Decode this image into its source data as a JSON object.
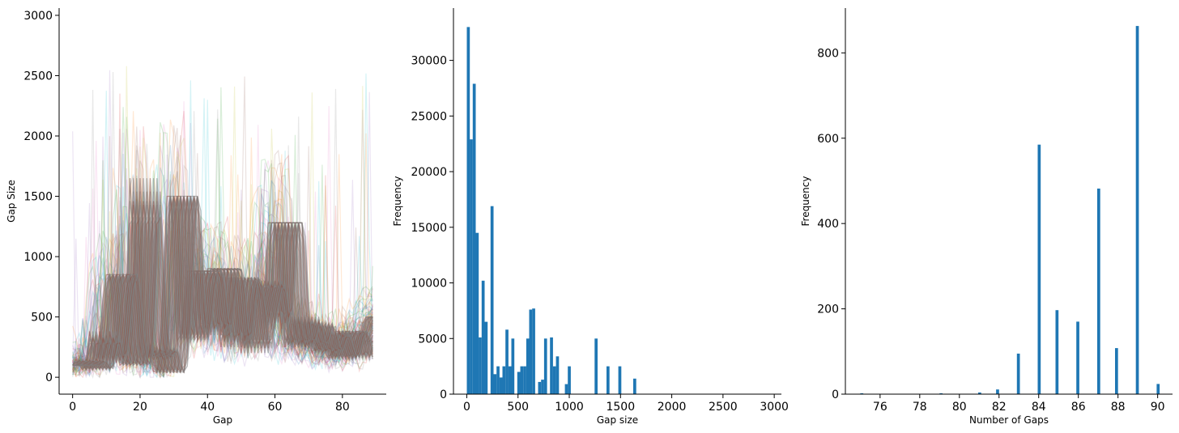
{
  "chart_data": [
    {
      "type": "line",
      "xlabel": "Gap",
      "ylabel": "Gap Size",
      "xlim": [
        -4,
        93
      ],
      "ylim": [
        -140,
        3060
      ],
      "xticks": [
        "0",
        "20",
        "40",
        "60",
        "80"
      ],
      "yticks": [
        "0",
        "500",
        "1000",
        "1500",
        "2000",
        "2500",
        "3000"
      ],
      "grid": false,
      "note_series": "many overlapping sequences of gap sizes (gap index 0-89), drawn semi-transparent",
      "series_profile": {
        "x": [
          0,
          1,
          2,
          3,
          4,
          5,
          6,
          7,
          8,
          9,
          10,
          11,
          12,
          13,
          14,
          15,
          16,
          17,
          18,
          19,
          20,
          21,
          22,
          23,
          24,
          25,
          26,
          27,
          28,
          29,
          30,
          31,
          32,
          33,
          34,
          35,
          36,
          37,
          38,
          39,
          40,
          41,
          42,
          43,
          44,
          45,
          46,
          47,
          48,
          49,
          50,
          51,
          52,
          53,
          54,
          55,
          56,
          57,
          58,
          59,
          60,
          61,
          62,
          63,
          64,
          65,
          66,
          67,
          68,
          69,
          70,
          71,
          72,
          73,
          74,
          75,
          76,
          77,
          78,
          79,
          80,
          81,
          82,
          83,
          84,
          85,
          86,
          87,
          88,
          89
        ],
        "y": [
          100,
          150,
          100,
          60,
          120,
          380,
          220,
          120,
          300,
          650,
          850,
          850,
          500,
          200,
          100,
          120,
          700,
          1650,
          1100,
          600,
          200,
          150,
          250,
          180,
          50,
          40,
          300,
          900,
          1500,
          1500,
          900,
          300,
          350,
          600,
          880,
          880,
          880,
          600,
          350,
          500,
          900,
          900,
          880,
          500,
          250,
          450,
          820,
          820,
          700,
          400,
          200,
          400,
          550,
          700,
          800,
          650,
          400,
          700,
          1280,
          1280,
          1280,
          700,
          350,
          250,
          400,
          500,
          300,
          250,
          400,
          450,
          300,
          200,
          250,
          380,
          300,
          200,
          150,
          250,
          380,
          380,
          250,
          150,
          250,
          300,
          300,
          350,
          450,
          500,
          500,
          500
        ]
      }
    },
    {
      "type": "bar",
      "xlabel": "Gap size",
      "ylabel": "Frequency",
      "xlim": [
        -130,
        3070
      ],
      "ylim": [
        0,
        34700
      ],
      "xticks": [
        "0",
        "500",
        "1000",
        "1500",
        "2000",
        "2500",
        "3000"
      ],
      "yticks": [
        "0",
        "5000",
        "10000",
        "15000",
        "20000",
        "25000",
        "30000"
      ],
      "grid": false,
      "bins": [
        {
          "x0": 0,
          "x1": 29,
          "value": 33000
        },
        {
          "x0": 29,
          "x1": 58,
          "value": 22900
        },
        {
          "x0": 58,
          "x1": 87,
          "value": 27900
        },
        {
          "x0": 87,
          "x1": 116,
          "value": 14500
        },
        {
          "x0": 116,
          "x1": 145,
          "value": 5100
        },
        {
          "x0": 145,
          "x1": 174,
          "value": 10200
        },
        {
          "x0": 174,
          "x1": 203,
          "value": 6500
        },
        {
          "x0": 203,
          "x1": 232,
          "value": 0
        },
        {
          "x0": 232,
          "x1": 261,
          "value": 16900
        },
        {
          "x0": 261,
          "x1": 290,
          "value": 1800
        },
        {
          "x0": 290,
          "x1": 319,
          "value": 2500
        },
        {
          "x0": 319,
          "x1": 348,
          "value": 1500
        },
        {
          "x0": 348,
          "x1": 377,
          "value": 2500
        },
        {
          "x0": 377,
          "x1": 406,
          "value": 5800
        },
        {
          "x0": 406,
          "x1": 435,
          "value": 2500
        },
        {
          "x0": 435,
          "x1": 464,
          "value": 5000
        },
        {
          "x0": 464,
          "x1": 493,
          "value": 0
        },
        {
          "x0": 493,
          "x1": 522,
          "value": 2000
        },
        {
          "x0": 522,
          "x1": 551,
          "value": 2500
        },
        {
          "x0": 551,
          "x1": 580,
          "value": 2500
        },
        {
          "x0": 580,
          "x1": 609,
          "value": 5000
        },
        {
          "x0": 609,
          "x1": 638,
          "value": 7600
        },
        {
          "x0": 638,
          "x1": 667,
          "value": 7700
        },
        {
          "x0": 667,
          "x1": 696,
          "value": 0
        },
        {
          "x0": 696,
          "x1": 725,
          "value": 1100
        },
        {
          "x0": 725,
          "x1": 754,
          "value": 1300
        },
        {
          "x0": 754,
          "x1": 783,
          "value": 5000
        },
        {
          "x0": 783,
          "x1": 812,
          "value": 0
        },
        {
          "x0": 812,
          "x1": 841,
          "value": 5100
        },
        {
          "x0": 841,
          "x1": 870,
          "value": 2500
        },
        {
          "x0": 870,
          "x1": 899,
          "value": 3400
        },
        {
          "x0": 899,
          "x1": 928,
          "value": 0
        },
        {
          "x0": 928,
          "x1": 957,
          "value": 0
        },
        {
          "x0": 957,
          "x1": 986,
          "value": 900
        },
        {
          "x0": 986,
          "x1": 1015,
          "value": 2500
        },
        {
          "x0": 1247,
          "x1": 1276,
          "value": 5000
        },
        {
          "x0": 1363,
          "x1": 1392,
          "value": 2500
        },
        {
          "x0": 1479,
          "x1": 1508,
          "value": 2500
        },
        {
          "x0": 1624,
          "x1": 1653,
          "value": 1400
        }
      ]
    },
    {
      "type": "bar",
      "xlabel": "Number of Gaps",
      "ylabel": "Frequency",
      "xlim": [
        74.25,
        90.75
      ],
      "ylim": [
        0,
        905
      ],
      "xticks": [
        "76",
        "78",
        "80",
        "82",
        "84",
        "86",
        "88",
        "90"
      ],
      "yticks": [
        "0",
        "200",
        "400",
        "600",
        "800"
      ],
      "grid": false,
      "bins": [
        {
          "x0": 75.0,
          "x1": 75.15,
          "value": 2
        },
        {
          "x0": 79.0,
          "x1": 79.15,
          "value": 2
        },
        {
          "x0": 80.95,
          "x1": 81.1,
          "value": 4
        },
        {
          "x0": 81.85,
          "x1": 82.0,
          "value": 11
        },
        {
          "x0": 82.9,
          "x1": 83.05,
          "value": 95
        },
        {
          "x0": 83.95,
          "x1": 84.1,
          "value": 585
        },
        {
          "x0": 84.85,
          "x1": 85.0,
          "value": 197
        },
        {
          "x0": 85.9,
          "x1": 86.05,
          "value": 170
        },
        {
          "x0": 86.95,
          "x1": 87.1,
          "value": 482
        },
        {
          "x0": 87.85,
          "x1": 88.0,
          "value": 108
        },
        {
          "x0": 88.9,
          "x1": 89.05,
          "value": 863
        },
        {
          "x0": 89.95,
          "x1": 90.1,
          "value": 24
        }
      ]
    }
  ],
  "colors": {
    "bar": "#1f77b4",
    "lines": [
      "#7f7f7f",
      "#8c564b",
      "#2ca02c",
      "#d62728",
      "#ff7f0e",
      "#1f77b4",
      "#9467bd",
      "#bcbd22",
      "#e377c2",
      "#17becf"
    ]
  }
}
